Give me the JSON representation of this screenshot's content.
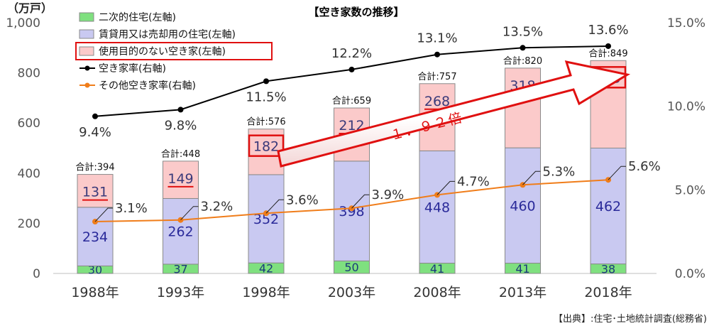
{
  "chart_data": {
    "type": "bar",
    "stacked": true,
    "title": "【空き家数の推移】",
    "y_unit": "（万戸）",
    "categories": [
      "1988年",
      "1993年",
      "1998年",
      "2003年",
      "2008年",
      "2013年",
      "2018年"
    ],
    "ylim": [
      0,
      1000
    ],
    "y_ticks": [
      "0",
      "200",
      "400",
      "600",
      "800",
      "1,000"
    ],
    "y2lim": [
      0,
      15
    ],
    "y2_ticks": [
      "0.0%",
      "5.0%",
      "10.0%",
      "15.0%"
    ],
    "series": [
      {
        "name": "二次的住宅(左軸)",
        "type": "bar",
        "axis": "left",
        "color": "#7fe07f",
        "values": [
          30,
          37,
          42,
          50,
          41,
          41,
          38
        ]
      },
      {
        "name": "賃貸用又は売却用の住宅(左軸)",
        "type": "bar",
        "axis": "left",
        "color": "#c9c9f1",
        "values": [
          234,
          262,
          352,
          398,
          448,
          460,
          462
        ]
      },
      {
        "name": "使用目的のない空き家(左軸)",
        "type": "bar",
        "axis": "left",
        "color": "#fbcaca",
        "values": [
          131,
          149,
          182,
          212,
          268,
          318,
          349
        ]
      },
      {
        "name": "空き家率(右軸)",
        "type": "line",
        "axis": "right",
        "color": "#000000",
        "values": [
          9.4,
          9.8,
          11.5,
          12.2,
          13.1,
          13.5,
          13.6
        ],
        "labels": [
          "9.4%",
          "9.8%",
          "11.5%",
          "12.2%",
          "13.1%",
          "13.5%",
          "13.6%"
        ]
      },
      {
        "name": "その他空き家率(右軸)",
        "type": "line",
        "axis": "right",
        "color": "#f07d1a",
        "values": [
          3.1,
          3.2,
          3.6,
          3.9,
          4.7,
          5.3,
          5.6
        ],
        "labels": [
          "3.1%",
          "3.2%",
          "3.6%",
          "3.9%",
          "4.7%",
          "5.3%",
          "5.6%"
        ]
      }
    ],
    "totals": [
      "合計:394",
      "合計:448",
      "合計:576",
      "合計:659",
      "合計:757",
      "合計:820",
      "合計:849"
    ],
    "annotation": "１．９２倍",
    "legend_position": "top-left",
    "grid": false,
    "colors": {
      "accent_red": "#e01010"
    }
  },
  "source_note": "【出典】:住宅･土地統計調査(総務省)"
}
